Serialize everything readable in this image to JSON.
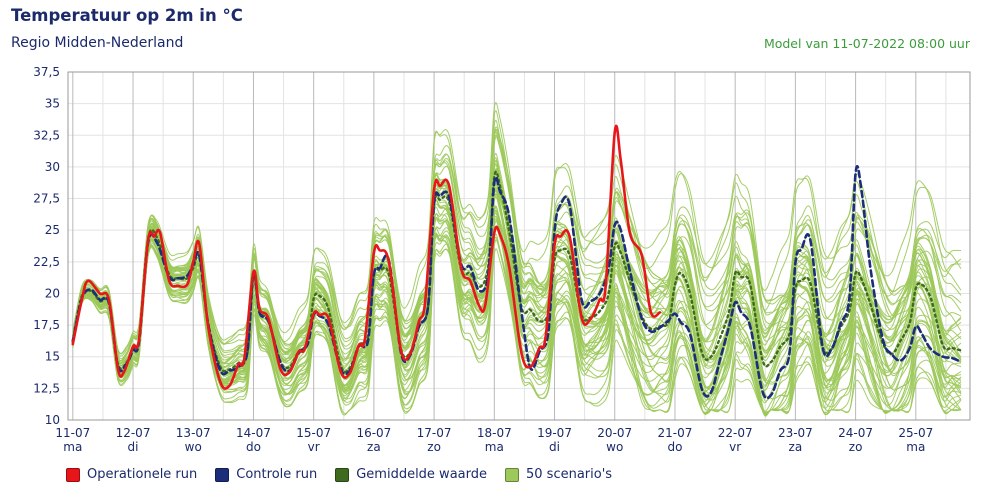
{
  "header": {
    "title": "Temperatuur op 2m in °C",
    "subtitle": "Regio Midden-Nederland",
    "model": "Model van 11-07-2022 08:00 uur"
  },
  "colors": {
    "operational": "#e8161b",
    "control": "#1c2d7a",
    "mean": "#3f6b1f",
    "scenarios": "#9cc95a",
    "grid_major": "#b9b9b9",
    "grid_minor": "#e3e3e3"
  },
  "legend": [
    {
      "label": "Operationele run",
      "color": "#e8161b"
    },
    {
      "label": "Controle run",
      "color": "#1c2d7a"
    },
    {
      "label": "Gemiddelde waarde",
      "color": "#3f6b1f"
    },
    {
      "label": "50 scenario's",
      "color": "#9cc95a"
    }
  ],
  "chart_data": {
    "type": "line",
    "title": "Temperatuur op 2m in °C",
    "ylim": [
      10,
      37.5
    ],
    "yticks": [
      "37,5",
      "35",
      "32,5",
      "30",
      "27,5",
      "25",
      "22,5",
      "20",
      "17,5",
      "15",
      "12,5",
      "10"
    ],
    "x_unit": "days since 11-07-2022 00:00",
    "xlim": [
      -0.08,
      14.9
    ],
    "day_ticks": [
      {
        "date": "11-07",
        "day": "ma"
      },
      {
        "date": "12-07",
        "day": "di"
      },
      {
        "date": "13-07",
        "day": "wo"
      },
      {
        "date": "14-07",
        "day": "do"
      },
      {
        "date": "15-07",
        "day": "vr"
      },
      {
        "date": "16-07",
        "day": "za"
      },
      {
        "date": "17-07",
        "day": "zo"
      },
      {
        "date": "18-07",
        "day": "ma"
      },
      {
        "date": "19-07",
        "day": "di"
      },
      {
        "date": "20-07",
        "day": "wo"
      },
      {
        "date": "21-07",
        "day": "do"
      },
      {
        "date": "22-07",
        "day": "vr"
      },
      {
        "date": "23-07",
        "day": "za"
      },
      {
        "date": "24-07",
        "day": "zo"
      },
      {
        "date": "25-07",
        "day": "ma"
      }
    ],
    "series": [
      {
        "name": "Operationele run",
        "style": "solid",
        "x": [
          0,
          0.15,
          0.25,
          0.45,
          0.6,
          0.75,
          0.85,
          1.0,
          1.1,
          1.25,
          1.35,
          1.45,
          1.6,
          1.75,
          1.9,
          2.0,
          2.1,
          2.25,
          2.45,
          2.6,
          2.75,
          2.85,
          3.0,
          3.1,
          3.25,
          3.45,
          3.6,
          3.75,
          3.85,
          4.0,
          4.1,
          4.25,
          4.45,
          4.6,
          4.75,
          4.85,
          5.0,
          5.1,
          5.25,
          5.45,
          5.6,
          5.75,
          5.85,
          6.0,
          6.1,
          6.25,
          6.45,
          6.6,
          6.75,
          6.85,
          7.0,
          7.1,
          7.25,
          7.45,
          7.6,
          7.75,
          7.85,
          8.0,
          8.1,
          8.25,
          8.45,
          8.6,
          8.75,
          8.85,
          9.0,
          9.1,
          9.25,
          9.45,
          9.6,
          9.75
        ],
        "values": [
          16,
          19.5,
          21,
          20,
          19.5,
          14,
          13.8,
          15.8,
          16.4,
          24.2,
          24.5,
          24.8,
          21,
          20.6,
          20.7,
          22.5,
          23.9,
          17.3,
          13,
          12.7,
          14.4,
          14.9,
          21.7,
          18.8,
          18,
          14,
          13.8,
          15.4,
          15.6,
          18.4,
          18.3,
          18,
          13.8,
          13.7,
          15.9,
          16.4,
          23.2,
          23.4,
          22.5,
          15.5,
          15.2,
          17.8,
          19.3,
          28.2,
          28.5,
          28.5,
          22,
          21,
          19,
          19.1,
          24.8,
          24.6,
          22,
          15.3,
          14.2,
          15.7,
          16.5,
          23.8,
          24.5,
          24.5,
          18.1,
          18,
          19.5,
          20.6,
          32.7,
          30.5,
          24.8,
          23,
          18.5,
          18.5
        ]
      },
      {
        "name": "Controle run",
        "style": "dashed",
        "x": [
          0,
          0.15,
          0.3,
          0.45,
          0.6,
          0.75,
          0.9,
          1.0,
          1.1,
          1.25,
          1.4,
          1.6,
          1.75,
          1.9,
          2.0,
          2.1,
          2.25,
          2.45,
          2.6,
          2.75,
          2.9,
          3.0,
          3.1,
          3.25,
          3.45,
          3.6,
          3.75,
          3.9,
          4.0,
          4.1,
          4.25,
          4.45,
          4.6,
          4.75,
          4.9,
          5.0,
          5.1,
          5.25,
          5.45,
          5.6,
          5.75,
          5.9,
          6.0,
          6.1,
          6.25,
          6.45,
          6.6,
          6.75,
          6.9,
          7.0,
          7.1,
          7.25,
          7.45,
          7.6,
          7.75,
          7.9,
          8.0,
          8.1,
          8.25,
          8.45,
          8.6,
          8.75,
          8.9,
          9.0,
          9.1,
          9.25,
          9.45,
          9.6,
          9.75,
          9.9,
          10.0,
          10.1,
          10.25,
          10.45,
          10.6,
          10.75,
          10.9,
          11.0,
          11.1,
          11.25,
          11.45,
          11.6,
          11.75,
          11.9,
          12.0,
          12.1,
          12.25,
          12.45,
          12.6,
          12.75,
          12.9,
          13.0,
          13.1,
          13.25,
          13.45,
          13.6,
          13.75,
          13.9,
          14.0,
          14.1,
          14.25,
          14.45,
          14.6,
          14.75
        ],
        "values": [
          16.2,
          19.6,
          20.3,
          19.5,
          19.3,
          14.2,
          14.5,
          15.5,
          16.2,
          24,
          24,
          21.3,
          21.2,
          21.4,
          22.3,
          23,
          17.5,
          13.9,
          13.9,
          14.2,
          15.4,
          21.7,
          18.5,
          17.8,
          14.5,
          13.9,
          15.3,
          16,
          18.3,
          18.2,
          17.5,
          14,
          13.9,
          15.8,
          16.2,
          21.5,
          22,
          22.6,
          15.3,
          15.1,
          17.4,
          19,
          27.2,
          27.7,
          27.6,
          22.3,
          22.1,
          20.2,
          21.5,
          28.8,
          28,
          26,
          18.6,
          14.1,
          15.4,
          17,
          24.9,
          27,
          27,
          19.5,
          19.4,
          20,
          22,
          25.4,
          25,
          21.8,
          18,
          17,
          17.3,
          17.9,
          18.4,
          17.7,
          16.8,
          12.4,
          12.2,
          14.8,
          17.4,
          19.3,
          18.5,
          17.4,
          12.3,
          12,
          13.9,
          15.2,
          22.4,
          23.5,
          24.2,
          15.8,
          15.6,
          17.6,
          19.8,
          29.5,
          28.1,
          21.9,
          16.4,
          15.2,
          14.7,
          15.7,
          17.4,
          16.8,
          15.6,
          15,
          14.9,
          14.6
        ]
      },
      {
        "name": "Gemiddelde waarde",
        "style": "dotted",
        "x": [
          0,
          0.15,
          0.3,
          0.45,
          0.6,
          0.75,
          0.9,
          1.0,
          1.1,
          1.25,
          1.4,
          1.6,
          1.75,
          1.9,
          2.0,
          2.1,
          2.25,
          2.45,
          2.6,
          2.75,
          2.9,
          3.0,
          3.1,
          3.25,
          3.45,
          3.6,
          3.75,
          3.9,
          4.0,
          4.1,
          4.25,
          4.45,
          4.6,
          4.75,
          4.9,
          5.0,
          5.1,
          5.25,
          5.45,
          5.6,
          5.75,
          5.9,
          6.0,
          6.1,
          6.25,
          6.45,
          6.6,
          6.75,
          6.9,
          7.0,
          7.1,
          7.25,
          7.45,
          7.6,
          7.75,
          7.9,
          8.0,
          8.1,
          8.25,
          8.45,
          8.6,
          8.75,
          8.9,
          9.0,
          9.1,
          9.25,
          9.45,
          9.6,
          9.75,
          9.9,
          10.0,
          10.1,
          10.25,
          10.45,
          10.6,
          10.75,
          10.9,
          11.0,
          11.1,
          11.25,
          11.45,
          11.6,
          11.75,
          11.9,
          12.0,
          12.1,
          12.25,
          12.45,
          12.6,
          12.75,
          12.9,
          13.0,
          13.1,
          13.25,
          13.45,
          13.6,
          13.75,
          13.9,
          14.0,
          14.1,
          14.25,
          14.45,
          14.6,
          14.75
        ],
        "values": [
          16.3,
          19.8,
          20.2,
          19.4,
          19.2,
          14.4,
          14.6,
          15.7,
          16.4,
          24.3,
          24.4,
          21.5,
          21.2,
          21.2,
          22,
          22.9,
          17.6,
          14.2,
          14,
          14.5,
          15.3,
          21.2,
          18.6,
          17.8,
          14.6,
          14.2,
          15.4,
          16.2,
          19.6,
          19.8,
          18.7,
          14.3,
          14.1,
          15.9,
          16.6,
          21.5,
          21.8,
          21.5,
          15.6,
          15.3,
          17.4,
          19,
          27,
          27.4,
          27.2,
          21.9,
          21.6,
          20.5,
          22.2,
          29.2,
          28.4,
          24.8,
          18.9,
          18.7,
          17.8,
          18.5,
          22.7,
          23.4,
          23,
          18.3,
          18.1,
          18.6,
          20,
          23.8,
          23.2,
          21,
          18.2,
          17.2,
          17.4,
          17.8,
          20.7,
          21.6,
          20,
          15.3,
          15,
          16.5,
          18.6,
          21.6,
          21.3,
          20.7,
          14.8,
          14.6,
          15.8,
          16.8,
          20.4,
          21,
          20.8,
          15.8,
          15.6,
          17.3,
          18.7,
          21.6,
          21.1,
          19.1,
          16.1,
          15.2,
          16.3,
          17.7,
          20.4,
          20.7,
          19.6,
          15.9,
          15.7,
          15.5
        ]
      }
    ]
  }
}
